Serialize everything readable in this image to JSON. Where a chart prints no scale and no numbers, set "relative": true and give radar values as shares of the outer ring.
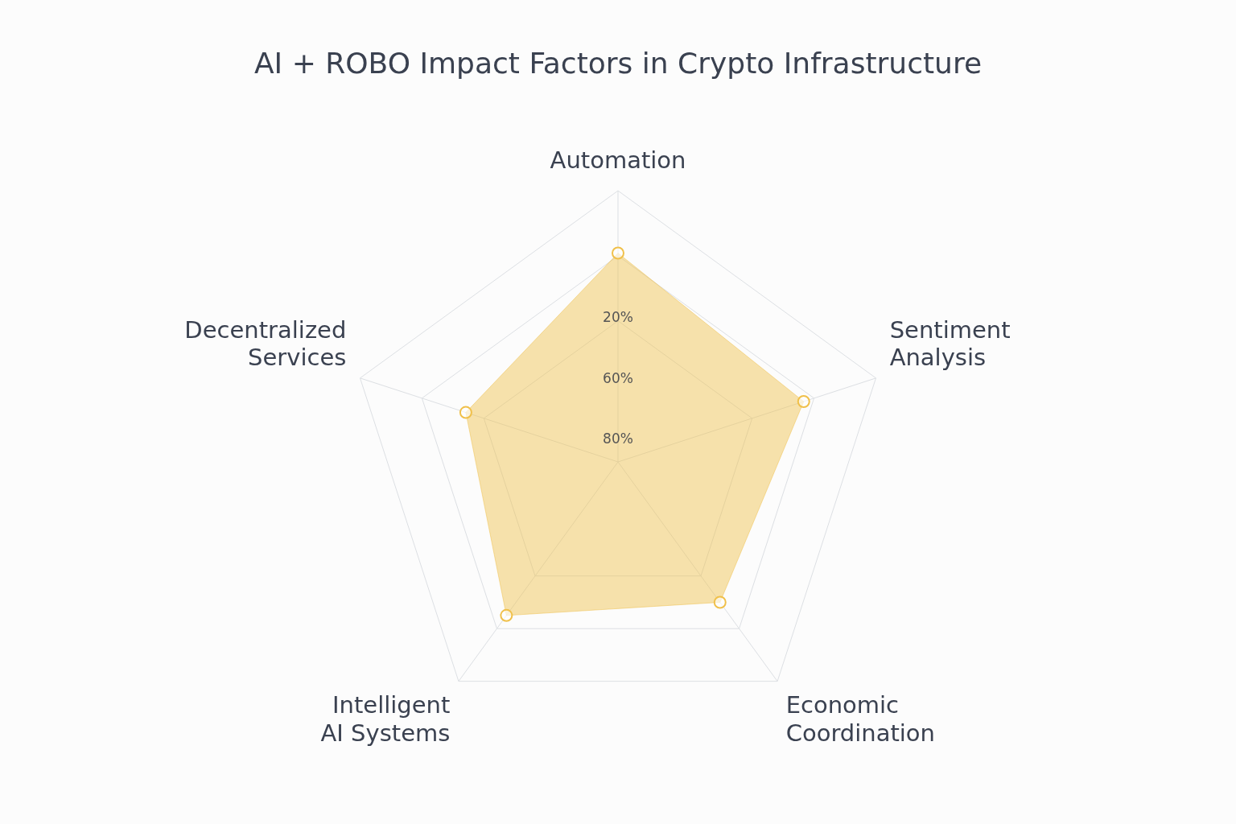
{
  "chart_data": {
    "type": "radar",
    "title": "AI + ROBO Impact Factors in Crypto Infrastructure",
    "categories": [
      "Automation",
      "Sentiment Analysis",
      "Economic Coordination",
      "Intelligent AI Systems",
      "Decentralized Services"
    ],
    "series": [
      {
        "color": "#f0c04a",
        "values": [
          0.77,
          0.72,
          0.64,
          0.7,
          0.59
        ]
      }
    ],
    "relative": true,
    "annotations": [
      "20%",
      "60%",
      "80%"
    ],
    "grid": true,
    "legend": false,
    "marker": "circle"
  }
}
